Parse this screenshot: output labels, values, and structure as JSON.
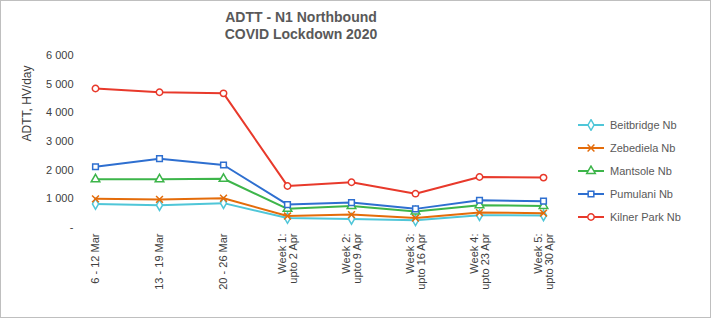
{
  "chart_data": {
    "type": "line",
    "title": "ADTT - N1 Northbound",
    "subtitle": "COVID Lockdown 2020",
    "y_label": "ADTT, HV/day",
    "categories": [
      "6 - 12 Mar",
      "13 - 19 Mar",
      "20 - 26 Mar",
      "Week 1: upto 2 Apr",
      "Week 2: upto 9 Apr",
      "Week 3: upto 16 Apr",
      "Week 4: upto 23 Apr",
      "Week 5: upto 30 Apr"
    ],
    "series": [
      {
        "name": "Beitbridge Nb",
        "color": "#4fc6d8",
        "marker": "diamond",
        "values": [
          820,
          780,
          850,
          330,
          300,
          250,
          430,
          420
        ]
      },
      {
        "name": "Zebediela Nb",
        "color": "#e46c0a",
        "marker": "x",
        "values": [
          1000,
          980,
          1020,
          400,
          450,
          330,
          520,
          500
        ]
      },
      {
        "name": "Mantsole Nb",
        "color": "#3db54a",
        "marker": "triangle",
        "values": [
          1680,
          1680,
          1700,
          650,
          750,
          560,
          780,
          750
        ]
      },
      {
        "name": "Pumulani Nb",
        "color": "#2e6fd0",
        "marker": "square",
        "values": [
          2120,
          2400,
          2180,
          800,
          870,
          650,
          950,
          920
        ]
      },
      {
        "name": "Kilner Park Nb",
        "color": "#e8392b",
        "marker": "circle",
        "values": [
          4850,
          4720,
          4680,
          1450,
          1580,
          1180,
          1760,
          1740
        ]
      }
    ],
    "ylim": [
      0,
      6000
    ],
    "yticks": [
      {
        "value": 0,
        "label": "-"
      },
      {
        "value": 1000,
        "label": "1 000"
      },
      {
        "value": 2000,
        "label": "2 000"
      },
      {
        "value": 3000,
        "label": "3 000"
      },
      {
        "value": 4000,
        "label": "4 000"
      },
      {
        "value": 5000,
        "label": "5 000"
      },
      {
        "value": 6000,
        "label": "6 000"
      }
    ],
    "grid": false,
    "legend": "right"
  }
}
